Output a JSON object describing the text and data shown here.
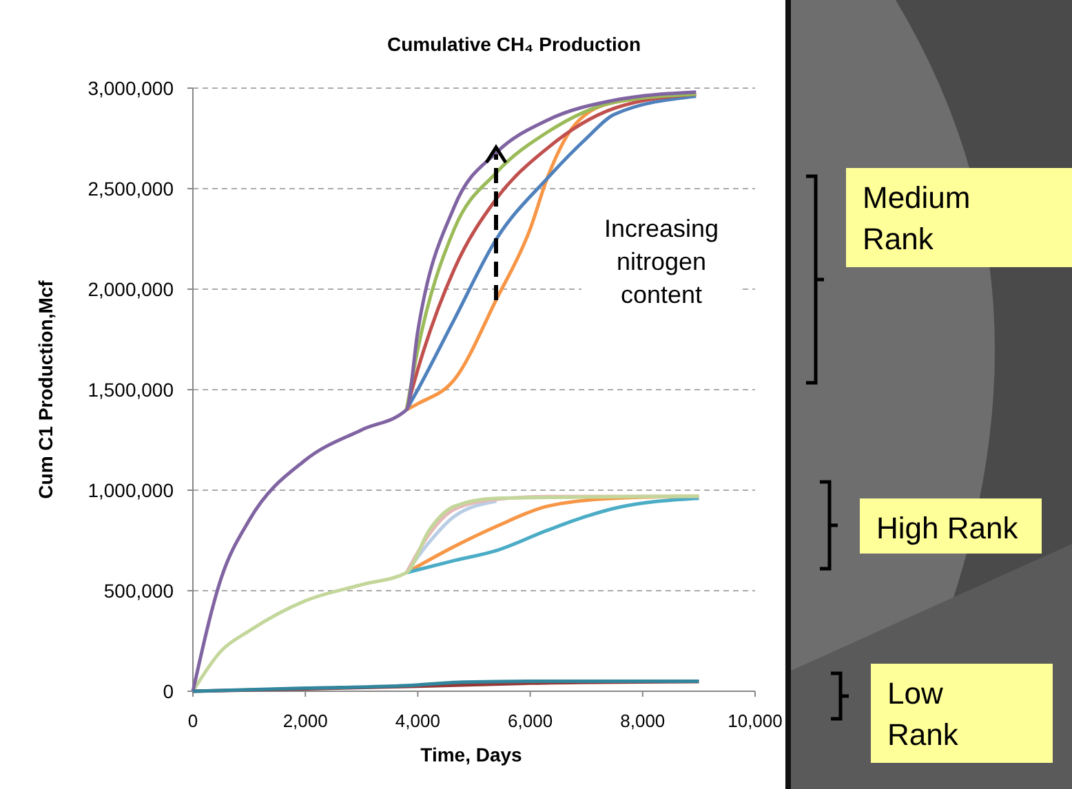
{
  "chart_data": {
    "type": "line",
    "title": "Cumulative CH₄ Production",
    "xlabel": "Time, Days",
    "ylabel": "Cum C1 Production,Mcf",
    "xlim": [
      0,
      10000
    ],
    "xticks": [
      {
        "value": 0,
        "label": "0"
      },
      {
        "value": 2000,
        "label": "2,000"
      },
      {
        "value": 4000,
        "label": "4,000"
      },
      {
        "value": 6000,
        "label": "6,000"
      },
      {
        "value": 8000,
        "label": "8,000"
      },
      {
        "value": 10000,
        "label": "10,000"
      }
    ],
    "ylim": [
      0,
      3000000
    ],
    "yticks": [
      {
        "value": 0,
        "label": "0"
      },
      {
        "value": 500000,
        "label": "500,000"
      },
      {
        "value": 1000000,
        "label": "1,000,000"
      },
      {
        "value": 1500000,
        "label": "1,500,000"
      },
      {
        "value": 2000000,
        "label": "2,000,000"
      },
      {
        "value": 2500000,
        "label": "2,500,000"
      },
      {
        "value": 3000000,
        "label": "3,000,000"
      }
    ],
    "grid": "y",
    "marker": "none",
    "line_style": "solid",
    "annotations": [
      "Increasing nitrogen content",
      "Medium Rank",
      "High Rank",
      "Low Rank"
    ],
    "series": [
      {
        "color": "#f79646",
        "x": [
          3800,
          4650,
          5400,
          6300,
          7500,
          9000
        ],
        "values": [
          590000,
          720000,
          820000,
          920000,
          960000,
          970000
        ]
      },
      {
        "color": "#4bacc6",
        "x": [
          3800,
          4650,
          5400,
          6300,
          7000,
          7500,
          9000
        ],
        "values": [
          590000,
          650000,
          700000,
          800000,
          870000,
          910000,
          960000
        ]
      },
      {
        "color": "#b9cde5",
        "x": [
          3800,
          4200,
          4650,
          5400
        ],
        "values": [
          590000,
          740000,
          870000,
          945000
        ]
      },
      {
        "color": "#e6b9b8",
        "x": [
          3800,
          4200,
          4650,
          5400,
          6300,
          9000
        ],
        "values": [
          590000,
          780000,
          905000,
          955000,
          968000,
          970000
        ]
      },
      {
        "color": "#c4d79b",
        "x": [
          0,
          500,
          1000,
          2000,
          3000,
          3800,
          4200,
          4650,
          5400,
          9000
        ],
        "values": [
          0,
          200000,
          300000,
          450000,
          530000,
          590000,
          800000,
          920000,
          960000,
          970000
        ]
      },
      {
        "color": "#f79646",
        "x": [
          3800,
          4000,
          4650,
          5400,
          6000,
          6300,
          6800,
          7500,
          8950
        ],
        "values": [
          1400000,
          1430000,
          1550000,
          1950000,
          2300000,
          2550000,
          2820000,
          2930000,
          2970000
        ]
      },
      {
        "color": "#4f81bd",
        "x": [
          3800,
          4000,
          4650,
          5400,
          6300,
          7000,
          7500,
          8950
        ],
        "values": [
          1400000,
          1500000,
          1850000,
          2250000,
          2550000,
          2750000,
          2870000,
          2960000
        ]
      },
      {
        "color": "#c0504d",
        "x": [
          3800,
          4000,
          4650,
          5400,
          6300,
          7500,
          8950
        ],
        "values": [
          1400000,
          1600000,
          2100000,
          2450000,
          2700000,
          2900000,
          2970000
        ]
      },
      {
        "color": "#9bbb59",
        "x": [
          3800,
          4000,
          4650,
          5400,
          6300,
          7500,
          8950
        ],
        "values": [
          1400000,
          1700000,
          2300000,
          2580000,
          2780000,
          2930000,
          2970000
        ]
      },
      {
        "color": "#8064a2",
        "x": [
          0,
          500,
          1000,
          2000,
          3000,
          3800,
          4000,
          4650,
          5400,
          6300,
          7500,
          8950
        ],
        "values": [
          0,
          560000,
          850000,
          1150000,
          1300000,
          1400000,
          1790000,
          2410000,
          2680000,
          2840000,
          2940000,
          2980000
        ]
      },
      {
        "color": "#953735",
        "x": [
          0,
          2000,
          4000,
          6000,
          9000
        ],
        "values": [
          0,
          12000,
          25000,
          40000,
          48000
        ]
      },
      {
        "color": "#31859c",
        "x": [
          0,
          2000,
          3800,
          4800,
          6000,
          9000
        ],
        "values": [
          0,
          15000,
          28000,
          45000,
          50000,
          50000
        ]
      }
    ]
  }
}
